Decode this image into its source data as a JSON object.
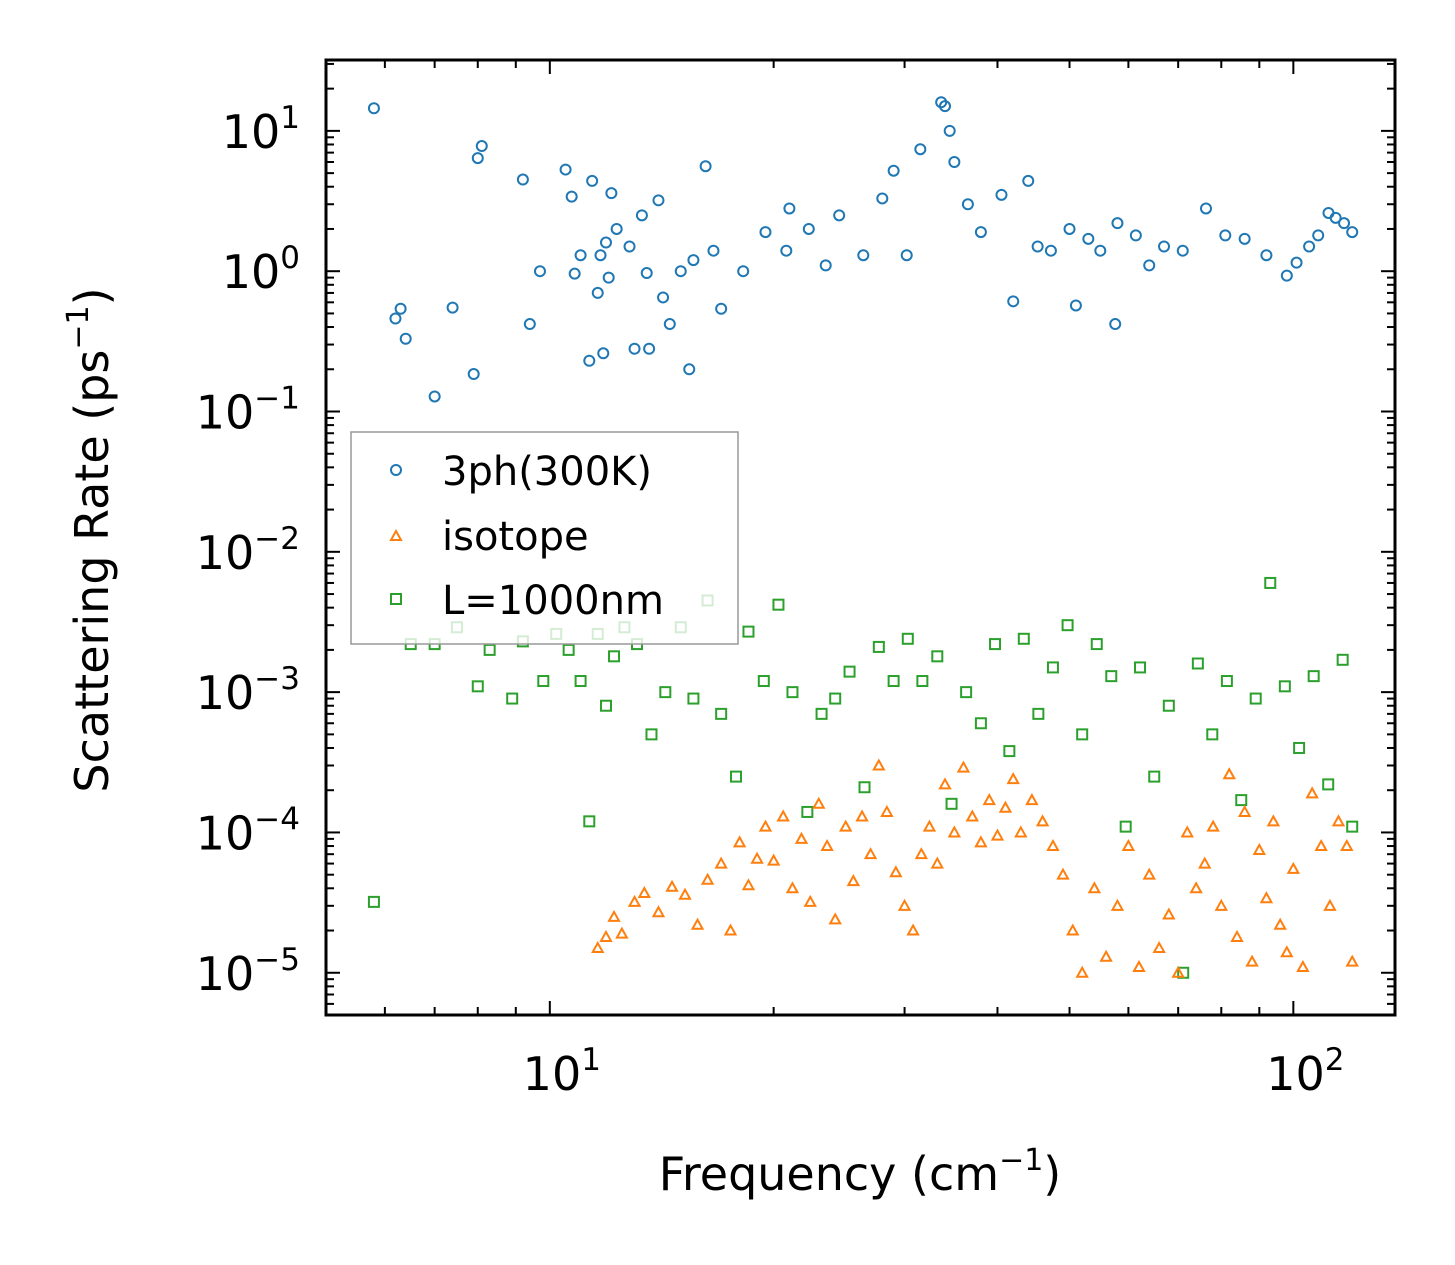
{
  "chart_data": {
    "type": "scatter",
    "title": "",
    "xlabel": "Frequency (cm",
    "xlabel_sup": "−1",
    "xlabel_end": ")",
    "ylabel": "Scattering Rate (ps",
    "ylabel_sup": "−1",
    "ylabel_end": ")",
    "xscale": "log",
    "yscale": "log",
    "xlim": [
      5.0,
      137.0
    ],
    "ylim": [
      5e-06,
      32
    ],
    "x_ticks": [
      {
        "value": 10,
        "base": "10",
        "exp": "1"
      },
      {
        "value": 100,
        "base": "10",
        "exp": "2"
      }
    ],
    "y_ticks": [
      {
        "value": 10,
        "base": "10",
        "exp": "1"
      },
      {
        "value": 1,
        "base": "10",
        "exp": "0"
      },
      {
        "value": 0.1,
        "base": "10",
        "exp": "−1"
      },
      {
        "value": 0.01,
        "base": "10",
        "exp": "−2"
      },
      {
        "value": 0.001,
        "base": "10",
        "exp": "−3"
      },
      {
        "value": 0.0001,
        "base": "10",
        "exp": "−4"
      },
      {
        "value": 1e-05,
        "base": "10",
        "exp": "−5"
      }
    ],
    "legend_position": "center-left",
    "series": [
      {
        "name": "3ph(300K)",
        "marker": "circle",
        "color": "#1f77b4",
        "x": [
          5.8,
          6.2,
          6.3,
          6.4,
          7.0,
          7.4,
          7.9,
          8.0,
          8.1,
          9.2,
          9.4,
          9.7,
          10.5,
          10.7,
          10.8,
          11.0,
          11.3,
          11.4,
          11.6,
          11.7,
          11.8,
          11.9,
          12.0,
          12.1,
          12.3,
          12.8,
          13.0,
          13.3,
          13.5,
          13.6,
          14.0,
          14.2,
          14.5,
          15.0,
          15.4,
          15.6,
          16.2,
          16.6,
          17.0,
          18.2,
          19.5,
          20.8,
          21.0,
          22.3,
          23.5,
          24.5,
          26.4,
          28.0,
          29.0,
          30.2,
          31.5,
          33.6,
          34.0,
          34.5,
          35.0,
          36.5,
          38.0,
          40.5,
          42.0,
          44.0,
          45.3,
          47.2,
          50.0,
          51.0,
          53.0,
          55.0,
          57.6,
          58.0,
          61.4,
          64.0,
          67.0,
          71.0,
          76.3,
          81.0,
          86.0,
          92.0,
          98.0,
          101.0,
          105.0,
          108.0,
          111.5,
          114.0,
          117.0,
          120.0
        ],
        "y": [
          14.5,
          0.46,
          0.54,
          0.33,
          0.128,
          0.55,
          0.185,
          6.4,
          7.8,
          4.5,
          0.42,
          1.0,
          5.3,
          3.4,
          0.96,
          1.3,
          0.23,
          4.4,
          0.7,
          1.3,
          0.26,
          1.6,
          0.9,
          3.6,
          2.0,
          1.5,
          0.28,
          2.5,
          0.97,
          0.28,
          3.2,
          0.65,
          0.42,
          1.0,
          0.2,
          1.2,
          5.6,
          1.4,
          0.54,
          1.0,
          1.9,
          1.4,
          2.8,
          2.0,
          1.1,
          2.5,
          1.3,
          3.3,
          5.2,
          1.3,
          7.4,
          16.0,
          15.0,
          10.0,
          6.0,
          3.0,
          1.9,
          3.5,
          0.61,
          4.4,
          1.5,
          1.4,
          2.0,
          0.57,
          1.7,
          1.4,
          0.42,
          2.2,
          1.8,
          1.1,
          1.5,
          1.4,
          2.8,
          1.8,
          1.7,
          1.3,
          0.93,
          1.15,
          1.5,
          1.8,
          2.6,
          2.4,
          2.2,
          1.9
        ]
      },
      {
        "name": "isotope",
        "marker": "triangle",
        "color": "#ff7f0e",
        "x": [
          11.6,
          11.9,
          12.2,
          12.5,
          13.0,
          13.4,
          14.0,
          14.6,
          15.2,
          15.8,
          16.3,
          17.0,
          17.5,
          18.0,
          18.5,
          19.0,
          19.5,
          20.0,
          20.6,
          21.2,
          21.8,
          22.4,
          23.0,
          23.6,
          24.2,
          25.0,
          25.6,
          26.3,
          27.0,
          27.7,
          28.4,
          29.2,
          30.0,
          30.8,
          31.6,
          32.4,
          33.2,
          34.0,
          35.0,
          36.0,
          37.0,
          38.0,
          39.0,
          40.0,
          41.0,
          42.0,
          43.0,
          44.5,
          46.0,
          47.5,
          49.0,
          50.5,
          52.0,
          54.0,
          56.0,
          58.0,
          60.0,
          62.0,
          64.0,
          66.0,
          68.0,
          70.0,
          72.0,
          74.0,
          76.0,
          78.0,
          80.0,
          82.0,
          84.0,
          86.0,
          88.0,
          90.0,
          92.0,
          94.0,
          96.0,
          98.0,
          100.0,
          103.0,
          106.0,
          109.0,
          112.0,
          115.0,
          118.0,
          120.0
        ],
        "y": [
          1.5e-05,
          1.8e-05,
          2.5e-05,
          1.9e-05,
          3.2e-05,
          3.7e-05,
          2.7e-05,
          4.1e-05,
          3.6e-05,
          2.2e-05,
          4.6e-05,
          6e-05,
          2e-05,
          8.5e-05,
          4.2e-05,
          6.5e-05,
          0.00011,
          6.3e-05,
          0.00013,
          4e-05,
          9e-05,
          3.2e-05,
          0.00016,
          8e-05,
          2.4e-05,
          0.00011,
          4.5e-05,
          0.00013,
          7e-05,
          0.0003,
          0.00014,
          5.2e-05,
          3e-05,
          2e-05,
          7e-05,
          0.00011,
          6e-05,
          0.00022,
          0.0001,
          0.00029,
          0.00013,
          8.5e-05,
          0.00017,
          9.5e-05,
          0.00015,
          0.00024,
          0.0001,
          0.00017,
          0.00012,
          8e-05,
          5e-05,
          2e-05,
          1e-05,
          4e-05,
          1.3e-05,
          3e-05,
          8e-05,
          1.1e-05,
          5e-05,
          1.5e-05,
          2.6e-05,
          1e-05,
          0.0001,
          4e-05,
          6e-05,
          0.00011,
          3e-05,
          0.00026,
          1.8e-05,
          0.00014,
          1.2e-05,
          7.5e-05,
          3.4e-05,
          0.00012,
          2.2e-05,
          1.4e-05,
          5.5e-05,
          1.1e-05,
          0.00019,
          8e-05,
          3e-05,
          0.00012,
          8e-05,
          1.2e-05
        ]
      },
      {
        "name": "L=1000nm",
        "marker": "square",
        "color": "#2ca02c",
        "x": [
          5.8,
          6.5,
          7.0,
          7.5,
          8.0,
          8.3,
          8.9,
          9.2,
          9.8,
          10.2,
          10.6,
          11.0,
          11.3,
          11.6,
          11.9,
          12.2,
          12.6,
          13.1,
          13.7,
          14.3,
          15.0,
          15.6,
          16.3,
          17.0,
          17.8,
          18.5,
          19.4,
          20.3,
          21.2,
          22.2,
          23.2,
          24.2,
          25.3,
          26.5,
          27.7,
          29.0,
          30.3,
          31.7,
          33.2,
          34.7,
          36.3,
          38.0,
          39.7,
          41.5,
          43.4,
          45.4,
          47.5,
          49.7,
          52.0,
          54.4,
          56.9,
          59.5,
          62.2,
          65.0,
          68.0,
          71.1,
          74.4,
          77.8,
          81.4,
          85.1,
          89.0,
          93.1,
          97.4,
          101.8,
          106.5,
          111.4,
          116.5,
          120.0
        ],
        "y": [
          3.2e-05,
          0.0022,
          0.0022,
          0.0029,
          0.0011,
          0.002,
          0.0009,
          0.0023,
          0.0012,
          0.0026,
          0.002,
          0.0012,
          0.00012,
          0.0026,
          0.0008,
          0.0018,
          0.0029,
          0.0022,
          0.0005,
          0.001,
          0.0029,
          0.0009,
          0.0045,
          0.0007,
          0.00025,
          0.0027,
          0.0012,
          0.0042,
          0.001,
          0.00014,
          0.0007,
          0.0009,
          0.0014,
          0.00021,
          0.0021,
          0.0012,
          0.0024,
          0.0012,
          0.0018,
          0.00016,
          0.001,
          0.0006,
          0.0022,
          0.00038,
          0.0024,
          0.0007,
          0.0015,
          0.003,
          0.0005,
          0.0022,
          0.0013,
          0.00011,
          0.0015,
          0.00025,
          0.0008,
          1e-05,
          0.0016,
          0.0005,
          0.0012,
          0.00017,
          0.0009,
          0.006,
          0.0011,
          0.0004,
          0.0013,
          0.00022,
          0.0017,
          0.00011
        ]
      }
    ]
  }
}
